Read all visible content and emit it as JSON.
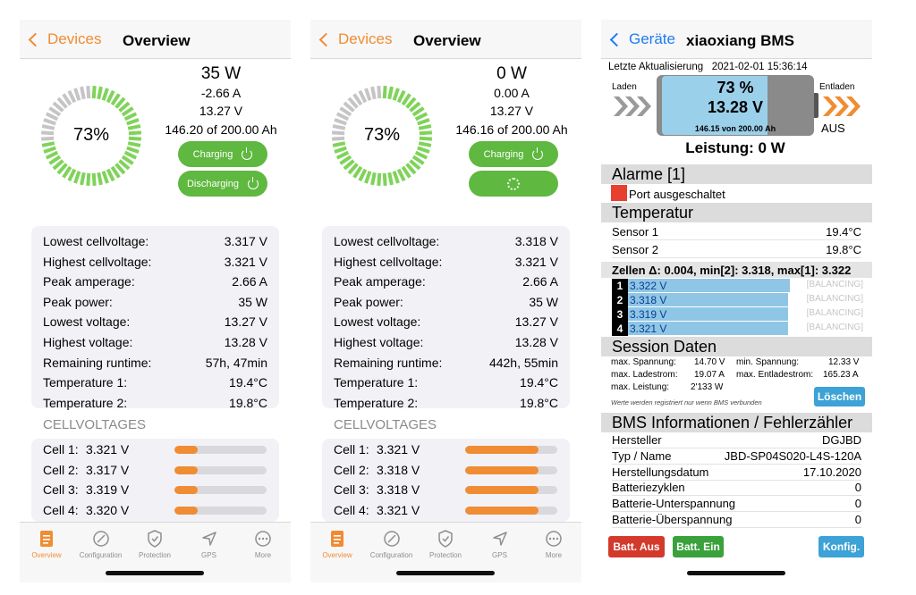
{
  "colors": {
    "accent": "#f08c33",
    "green": "#5fb83f",
    "blue_link": "#1e7cf2",
    "alarm_red": "#e8402f"
  },
  "screens": [
    {
      "nav": {
        "back": "Devices",
        "title": "Overview"
      },
      "soc_percent": 73,
      "soc_label": "73%",
      "power": "35 W",
      "current": "-2.66 A",
      "voltage": "13.27 V",
      "capacity": "146.20 of 200.00 Ah",
      "charging_button": "Charging",
      "discharging_button": "Discharging",
      "stats": [
        {
          "label": "Lowest cellvoltage:",
          "value": "3.317 V"
        },
        {
          "label": "Highest cellvoltage:",
          "value": "3.321 V"
        },
        {
          "label": "Peak amperage:",
          "value": "2.66 A"
        },
        {
          "label": "Peak power:",
          "value": "35 W"
        },
        {
          "label": "Lowest voltage:",
          "value": "13.27 V"
        },
        {
          "label": "Highest voltage:",
          "value": "13.28 V"
        },
        {
          "label": "Remaining runtime:",
          "value": "57h, 47min"
        },
        {
          "label": "Temperature 1:",
          "value": "19.4°C"
        },
        {
          "label": "Temperature 2:",
          "value": "19.8°C"
        }
      ],
      "cells_heading": "CELLVOLTAGES",
      "cells": [
        {
          "name": "Cell 1:",
          "value": "3.321 V",
          "level": 0.25
        },
        {
          "name": "Cell 2:",
          "value": "3.317 V",
          "level": 0.25
        },
        {
          "name": "Cell 3:",
          "value": "3.319 V",
          "level": 0.25
        },
        {
          "name": "Cell 4:",
          "value": "3.320 V",
          "level": 0.25
        }
      ]
    },
    {
      "nav": {
        "back": "Devices",
        "title": "Overview"
      },
      "soc_percent": 73,
      "soc_label": "73%",
      "power": "0 W",
      "current": "0.00 A",
      "voltage": "13.27 V",
      "capacity": "146.16 of 200.00 Ah",
      "charging_button": "Charging",
      "stats": [
        {
          "label": "Lowest cellvoltage:",
          "value": "3.318 V"
        },
        {
          "label": "Highest cellvoltage:",
          "value": "3.321 V"
        },
        {
          "label": "Peak amperage:",
          "value": "2.66 A"
        },
        {
          "label": "Peak power:",
          "value": "35 W"
        },
        {
          "label": "Lowest voltage:",
          "value": "13.27 V"
        },
        {
          "label": "Highest voltage:",
          "value": "13.28 V"
        },
        {
          "label": "Remaining runtime:",
          "value": "442h, 55min"
        },
        {
          "label": "Temperature 1:",
          "value": "19.4°C"
        },
        {
          "label": "Temperature 2:",
          "value": "19.8°C"
        }
      ],
      "cells_heading": "CELLVOLTAGES",
      "cells": [
        {
          "name": "Cell 1:",
          "value": "3.321 V",
          "level": 0.8
        },
        {
          "name": "Cell 2:",
          "value": "3.318 V",
          "level": 0.8
        },
        {
          "name": "Cell 3:",
          "value": "3.318 V",
          "level": 0.8
        },
        {
          "name": "Cell 4:",
          "value": "3.321 V",
          "level": 0.8
        }
      ]
    }
  ],
  "tabs": [
    {
      "label": "Overview",
      "icon": "document-icon"
    },
    {
      "label": "Configuration",
      "icon": "gauge-icon"
    },
    {
      "label": "Protection",
      "icon": "shield-icon"
    },
    {
      "label": "GPS",
      "icon": "location-arrow-icon"
    },
    {
      "label": "More",
      "icon": "more-icon"
    }
  ],
  "bms": {
    "nav": {
      "back": "Geräte",
      "title": "xiaoxiang BMS"
    },
    "updated_label": "Letzte Aktualisierung",
    "updated_value": "2021-02-01 15:36:14",
    "laden": "Laden",
    "entladen": "Entladen",
    "aus": "AUS",
    "soc": "73 %",
    "soc_level": 0.73,
    "voltage": "13.28 V",
    "capacity": "146.15 von 200.00 Ah",
    "leistung": "Leistung: 0 W",
    "alarm_heading": "Alarme [1]",
    "alarm_text": "Port ausgeschaltet",
    "temp_heading": "Temperatur",
    "sensors": [
      {
        "label": "Sensor 1",
        "value": "19.4°C"
      },
      {
        "label": "Sensor 2",
        "value": "19.8°C"
      }
    ],
    "cells_header": "Zellen Δ: 0.004, min[2]: 3.318, max[1]: 3.322",
    "cells": [
      {
        "num": "1",
        "value": "3.322 V",
        "status": "[BALANCING]",
        "level": 0.73
      },
      {
        "num": "2",
        "value": "3.318 V",
        "status": "[BALANCING]",
        "level": 0.72
      },
      {
        "num": "3",
        "value": "3.319 V",
        "status": "[BALANCING]",
        "level": 0.72
      },
      {
        "num": "4",
        "value": "3.321 V",
        "status": "[BALANCING]",
        "level": 0.72
      }
    ],
    "session_heading": "Session Daten",
    "session": {
      "max_spannung_label": "max. Spannung:",
      "max_spannung": "14.70 V",
      "min_spannung_label": "min. Spannung:",
      "min_spannung": "12.33 V",
      "max_ladestrom_label": "max. Ladestrom:",
      "max_ladestrom": "19.07 A",
      "max_entladestrom_label": "max. Entladestrom:",
      "max_entladestrom": "165.23 A",
      "max_leistung_label": "max. Leistung:",
      "max_leistung": "2'133 W",
      "note": "Werte werden registriert nur wenn BMS verbunden"
    },
    "loeschen": "Löschen",
    "info_heading": "BMS Informationen / Fehlerzähler",
    "info": [
      {
        "label": "Hersteller",
        "value": "DGJBD"
      },
      {
        "label": "Typ / Name",
        "value": "JBD-SP04S020-L4S-120A"
      },
      {
        "label": "Herstellungsdatum",
        "value": "17.10.2020"
      },
      {
        "label": "Batteriezyklen",
        "value": "0"
      },
      {
        "label": "Batterie-Unterspannung",
        "value": "0"
      },
      {
        "label": "Batterie-Überspannung",
        "value": "0"
      }
    ],
    "btn_aus": "Batt. Aus",
    "btn_ein": "Batt. Ein",
    "btn_konfig": "Konfig."
  }
}
